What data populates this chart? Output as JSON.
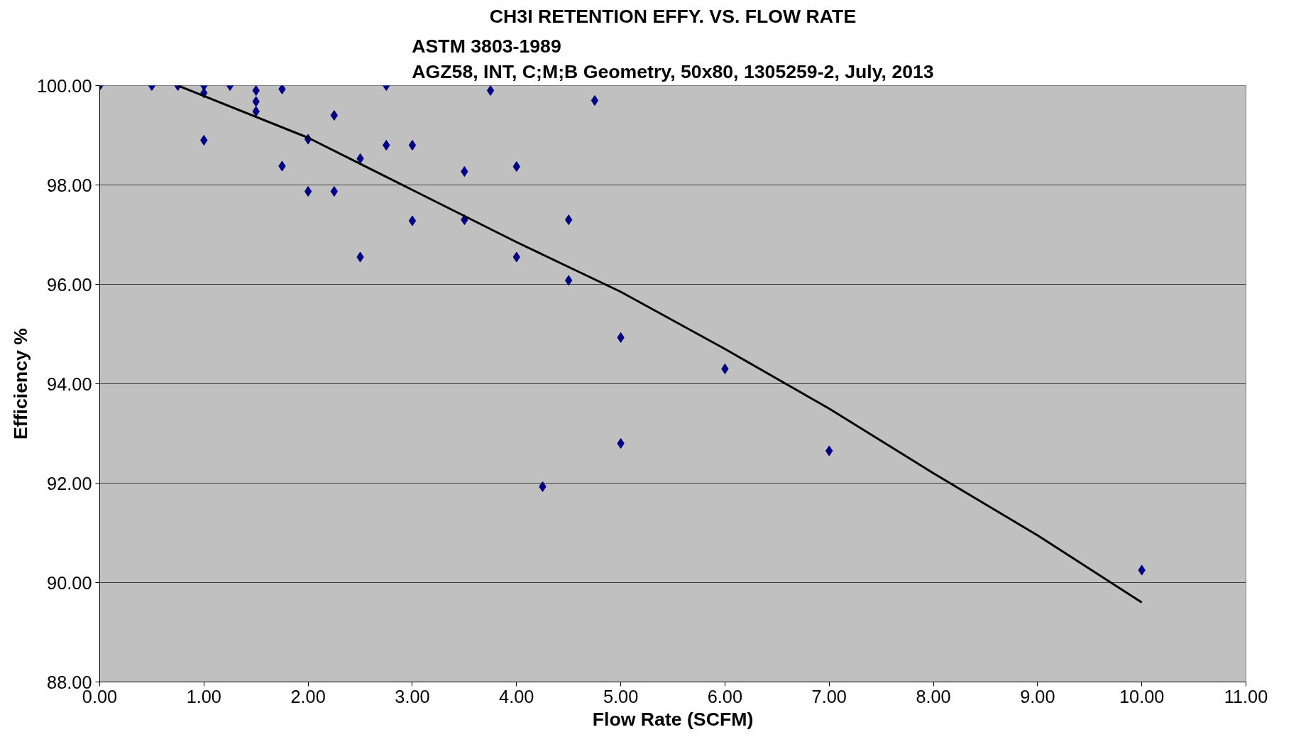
{
  "chart_data": {
    "type": "scatter",
    "title": "CH3I RETENTION EFFY. VS. FLOW RATE",
    "subtitle": "ASTM 3803-1989\nAGZ58, INT, C;M;B Geometry, 50x80, 1305259-2, July, 2013",
    "xlabel": "Flow Rate (SCFM)",
    "ylabel": "Efficiency %",
    "xlim": [
      0,
      11
    ],
    "ylim": [
      88,
      100
    ],
    "xticks": [
      {
        "value": 0,
        "label": "0.00"
      },
      {
        "value": 1,
        "label": "1.00"
      },
      {
        "value": 2,
        "label": "2.00"
      },
      {
        "value": 3,
        "label": "3.00"
      },
      {
        "value": 4,
        "label": "4.00"
      },
      {
        "value": 5,
        "label": "5.00"
      },
      {
        "value": 6,
        "label": "6.00"
      },
      {
        "value": 7,
        "label": "7.00"
      },
      {
        "value": 8,
        "label": "8.00"
      },
      {
        "value": 9,
        "label": "9.00"
      },
      {
        "value": 10,
        "label": "10.00"
      },
      {
        "value": 11,
        "label": "11.00"
      }
    ],
    "yticks": [
      {
        "value": 88,
        "label": "88.00"
      },
      {
        "value": 90,
        "label": "90.00"
      },
      {
        "value": 92,
        "label": "92.00"
      },
      {
        "value": 94,
        "label": "94.00"
      },
      {
        "value": 96,
        "label": "96.00"
      },
      {
        "value": 98,
        "label": "98.00"
      },
      {
        "value": 100,
        "label": "100.00"
      }
    ],
    "grid": "y",
    "marker": "diamond",
    "series": [
      {
        "color": "#000080",
        "x": [
          0,
          0.5,
          0.75,
          1,
          1,
          1,
          1.25,
          1.5,
          1.5,
          1.5,
          1.75,
          1.75,
          2,
          2,
          2.25,
          2.25,
          2.5,
          2.5,
          2.75,
          2.75,
          3,
          3,
          3.5,
          3.5,
          3.75,
          4,
          4,
          4.25,
          4.5,
          4.5,
          4.75,
          5,
          5,
          6,
          7,
          10
        ],
        "values": [
          100,
          100,
          100,
          100,
          99.85,
          98.9,
          100,
          99.9,
          99.68,
          99.48,
          99.93,
          98.38,
          98.92,
          97.87,
          99.4,
          97.87,
          98.53,
          96.55,
          100,
          98.8,
          98.8,
          97.28,
          98.27,
          97.3,
          99.9,
          98.37,
          96.55,
          91.93,
          97.3,
          96.08,
          99.7,
          94.93,
          92.8,
          94.3,
          92.65,
          90.25
        ]
      },
      {
        "type": "line",
        "color": "#000000",
        "marker": "none",
        "x": [
          0.75,
          2,
          3,
          4,
          5,
          6,
          7,
          8,
          9,
          10
        ],
        "values": [
          100,
          98.95,
          97.9,
          96.85,
          95.85,
          94.7,
          93.5,
          92.2,
          90.95,
          89.6
        ]
      }
    ]
  }
}
